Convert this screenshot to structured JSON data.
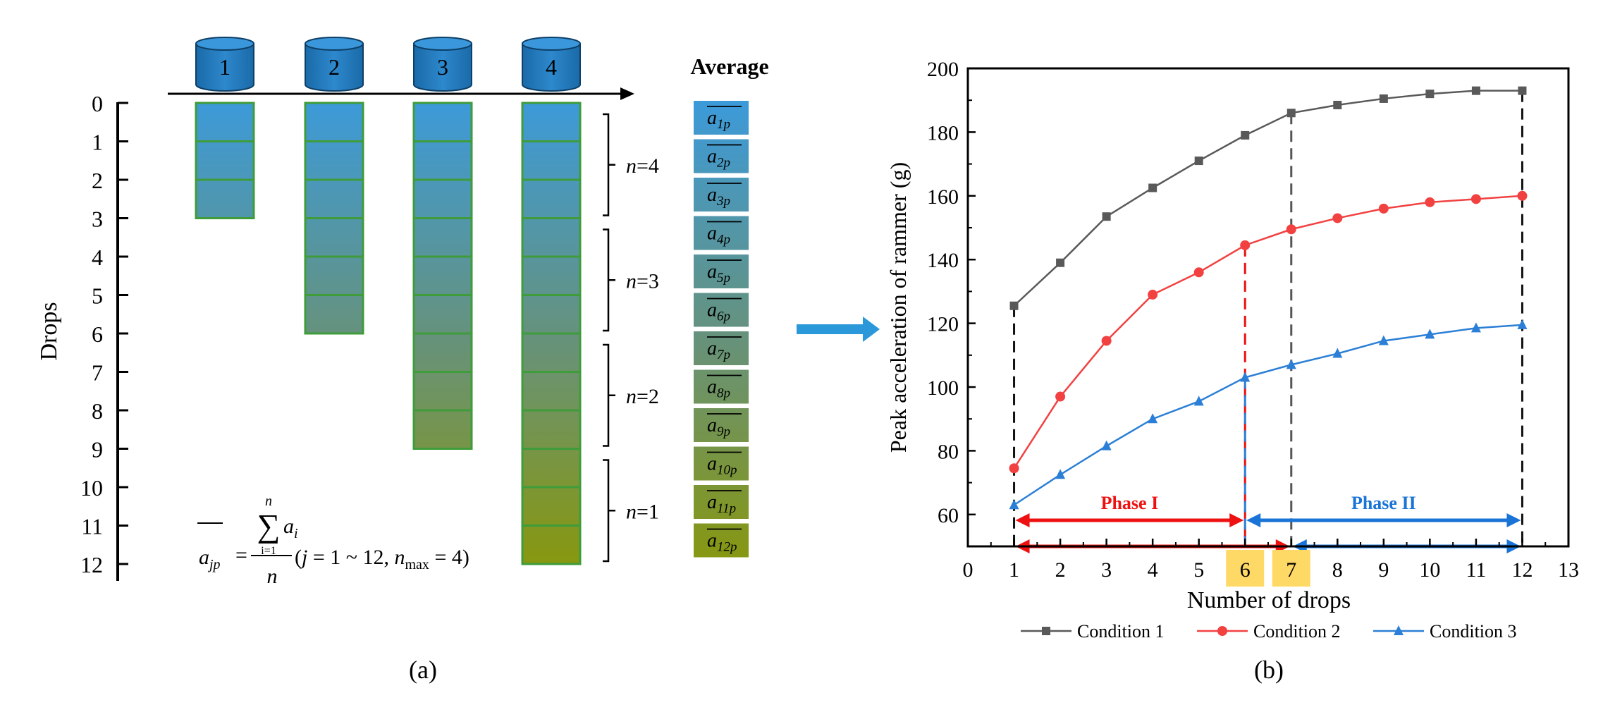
{
  "panel_a": {
    "caption": "(a)",
    "y_label": "Drops",
    "drop_ticks": [
      "0",
      "1",
      "2",
      "3",
      "4",
      "5",
      "6",
      "7",
      "8",
      "9",
      "10",
      "11",
      "12"
    ],
    "cylinders": [
      "1",
      "2",
      "3",
      "4"
    ],
    "column_drop_counts": [
      3,
      6,
      9,
      12
    ],
    "average_header": "Average",
    "averages": [
      {
        "base": "a",
        "sub": "1p"
      },
      {
        "base": "a",
        "sub": "2p"
      },
      {
        "base": "a",
        "sub": "3p"
      },
      {
        "base": "a",
        "sub": "4p"
      },
      {
        "base": "a",
        "sub": "5p"
      },
      {
        "base": "a",
        "sub": "6p"
      },
      {
        "base": "a",
        "sub": "7p"
      },
      {
        "base": "a",
        "sub": "8p"
      },
      {
        "base": "a",
        "sub": "9p"
      },
      {
        "base": "a",
        "sub": "10p"
      },
      {
        "base": "a",
        "sub": "11p"
      },
      {
        "base": "a",
        "sub": "12p"
      }
    ],
    "n_groups": [
      {
        "prefix": "n",
        "suffix": "=4"
      },
      {
        "prefix": "n",
        "suffix": "=3"
      },
      {
        "prefix": "n",
        "suffix": "=2"
      },
      {
        "prefix": "n",
        "suffix": "=1"
      }
    ],
    "formula": {
      "lhs": "a",
      "lhs_sub": "jp",
      "equals": "=",
      "sum_top": "n",
      "sum_symbol": "∑",
      "sum_var": "a",
      "sum_var_sub": "i",
      "sum_bottom": "i=1",
      "denominator": "n",
      "condition_open": "(",
      "condition_j": "j",
      "condition_range": " = 1 ~ 12, ",
      "condition_n": "n",
      "condition_n_sub": "max",
      "condition_close": " = 4)"
    }
  },
  "panel_b": {
    "caption": "(b)"
  },
  "chart_data": {
    "type": "line",
    "xlabel": "Number of drops",
    "ylabel": "Peak acceleration of rammer (g)",
    "xlim": [
      0,
      13
    ],
    "ylim": [
      50,
      200
    ],
    "x_ticks": [
      "0",
      "1",
      "2",
      "3",
      "4",
      "5",
      "6",
      "7",
      "8",
      "9",
      "10",
      "11",
      "12",
      "13"
    ],
    "y_ticks": [
      "60",
      "80",
      "100",
      "120",
      "140",
      "160",
      "180",
      "200"
    ],
    "highlight_ticks": [
      "6",
      "7"
    ],
    "x": [
      1,
      2,
      3,
      4,
      5,
      6,
      7,
      8,
      9,
      10,
      11,
      12
    ],
    "series": [
      {
        "name": "Condition 1",
        "color": "#595959",
        "marker": "square",
        "values": [
          125.5,
          139,
          153.5,
          162.5,
          171,
          179,
          186,
          188.5,
          190.5,
          192,
          193,
          193
        ]
      },
      {
        "name": "Condition 2",
        "color": "#f24141",
        "marker": "circle",
        "values": [
          74.5,
          97,
          114.5,
          129,
          136,
          144.5,
          149.5,
          153,
          156,
          158,
          159,
          160
        ]
      },
      {
        "name": "Condition 3",
        "color": "#2b7fd6",
        "marker": "triangle",
        "values": [
          63,
          72.5,
          81.5,
          90,
          95.5,
          103,
          107,
          110.5,
          114.5,
          116.5,
          118.5,
          119.5
        ]
      }
    ],
    "phases": [
      {
        "label": "Phase I",
        "color": "#ee1111",
        "x_from": 1,
        "x_to": 6
      },
      {
        "label": "Phase II",
        "color": "#1a73d6",
        "x_from": 6,
        "x_to": 12
      }
    ],
    "lower_arrows": [
      {
        "color": "#ee1111",
        "x_from": 1,
        "x_to": 7
      },
      {
        "color": "#1a73d6",
        "x_from": 7,
        "x_to": 12
      }
    ],
    "dashed_verticals": [
      {
        "x": 1,
        "color": "#111111",
        "series": 0
      },
      {
        "x": 6,
        "color": "#ee1111",
        "series": 1
      },
      {
        "x": 6,
        "color": "#2b7fd6",
        "series": 2
      },
      {
        "x": 7,
        "color": "#555555",
        "series": 0
      },
      {
        "x": 12,
        "color": "#111111",
        "series": 0
      }
    ],
    "legend_position": "bottom"
  }
}
